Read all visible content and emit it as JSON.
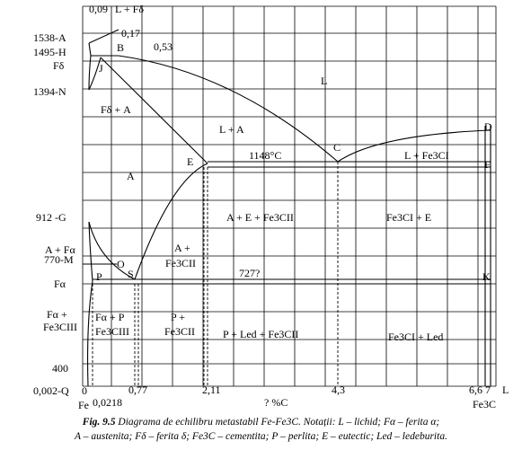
{
  "figure": {
    "labels": {
      "t1538": "1538-A",
      "t1495": "1495-H",
      "fdelta": "Fδ",
      "t1394": "1394-N",
      "t912": "912 -G",
      "afa": "A + Fα",
      "t770": "770-M",
      "falpha": "Fα",
      "fa_fe3c_1": "Fα +",
      "fa_fe3c_2": "Fe3CIII",
      "t400": "400",
      "q": "0,002-Q",
      "c009": "0,09",
      "l_fd": "L + Fδ",
      "pB": "B",
      "c017": "0,17",
      "c053": "0,53",
      "pJ": "J",
      "fd_a": "Fδ + A",
      "L": "L",
      "l_a": "L + A",
      "pC": "C",
      "pD": "D",
      "pE": "E",
      "t1148": "1148°C",
      "l_fe3c": "L + Fe3CI",
      "pF": "F",
      "A": "A",
      "a_e_fe3c": "A + E + Fe3CII",
      "fe3c_e": "Fe3CI + E",
      "a_fe3c_1": "A +",
      "a_fe3c_2": "Fe3CII",
      "pO": "O",
      "pP": "P",
      "pS": "S",
      "t727": "727?",
      "pK": "K",
      "fa_p_1": "Fα + P",
      "fa_p_2": "Fe3CIII",
      "p_fe3c_1": "P +",
      "p_fe3c_2": "Fe3CII",
      "p_led": "P + Led + Fe3CII",
      "fe3c_led": "Fe3CI + Led",
      "x0": "0",
      "xFe": "Fe",
      "x0218": "0,0218",
      "x077": "0,77",
      "x211": "2,11",
      "xpc": "?  %C",
      "x43": "4,3",
      "x667": "6,6 7",
      "xL": "L",
      "xFe3C": "Fe3C"
    }
  },
  "caption": {
    "fig_label": "Fig. 9.5",
    "line1": "Diagrama de echilibru  metastabil Fe-Fe3C.  Notații: L – lichid; Fα – ferita α;",
    "line2": "A – austenita; Fδ – ferita δ; Fe3C – cementita; P – perlita; E – eutectic; Led – ledeburita."
  }
}
